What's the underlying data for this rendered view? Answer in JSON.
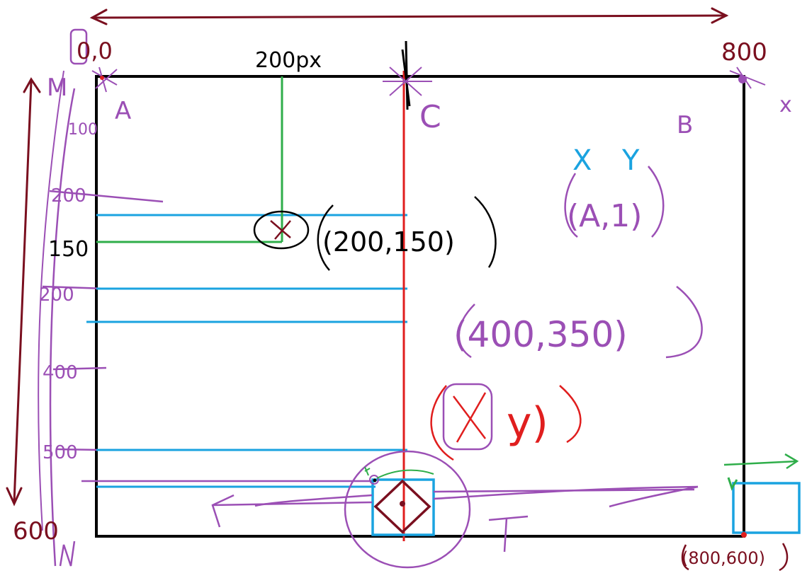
{
  "colors": {
    "frame": "#000000",
    "maroon": "#7a0f1f",
    "purple": "#9b4fb5",
    "blue": "#1aa3e0",
    "green": "#2fae4a",
    "red": "#e01e1e",
    "black": "#000000",
    "background": "#ffffff"
  },
  "labels": {
    "origin": "0,0",
    "top_right": "800",
    "bottom_left": "600",
    "bottom_right_coord": "(800,600)",
    "point_a": "A",
    "point_b": "B",
    "point_c": "C",
    "point_m": "M",
    "point_n": "N",
    "x_axis_200px": "200px",
    "y_150": "150",
    "coord_200_150": "(200,150)",
    "xy_letters_x": "X",
    "xy_letters_y": "Y",
    "coord_a": "(A,1)",
    "coord_400_350": "(400,350)",
    "xy_paren_y": "y)",
    "tick_100": "100",
    "tick_200a": "200",
    "tick_200b": "200",
    "tick_400": "400",
    "tick_500": "500",
    "t_mark": "T",
    "right_x": "x"
  }
}
